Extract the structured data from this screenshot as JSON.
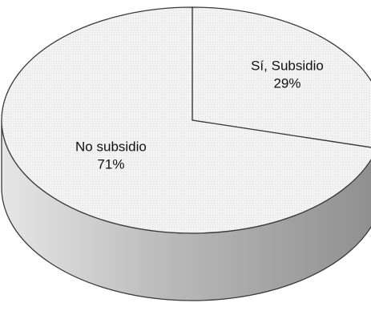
{
  "chart_data": {
    "type": "pie",
    "style": "3d",
    "title": "",
    "legend": "none",
    "categories": [
      "Sí, Subsidio",
      "No subsidio"
    ],
    "values": [
      29,
      71
    ],
    "labels": [
      {
        "name": "Sí, Subsidio",
        "value_label": "29%"
      },
      {
        "name": "No subsidio",
        "value_label": "71%"
      }
    ],
    "colors": {
      "top": "#f1f1f1",
      "outline": "#3a3a3a"
    }
  }
}
